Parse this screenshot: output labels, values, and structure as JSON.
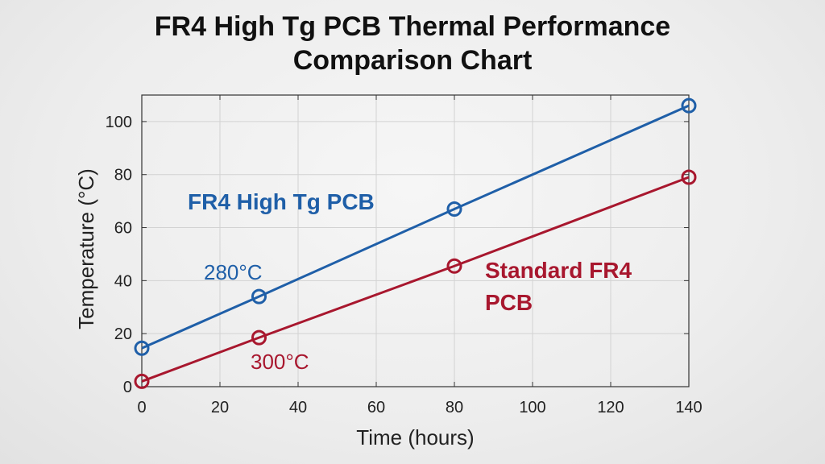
{
  "chart_data": {
    "type": "line",
    "title_lines": [
      "FR4 High Tg PCB Thermal Performance",
      "Comparison Chart"
    ],
    "xlabel": "Time (hours)",
    "ylabel": "Temperature (°C)",
    "xlim": [
      0,
      140
    ],
    "ylim": [
      0,
      110
    ],
    "xticks": [
      0,
      20,
      40,
      60,
      80,
      100,
      120,
      140
    ],
    "yticks": [
      0,
      20,
      40,
      60,
      80,
      100
    ],
    "grid": true,
    "series": [
      {
        "name": "FR4 High Tg PCB",
        "color": "#1f5fa8",
        "marker": "circle-open",
        "x": [
          0,
          30,
          80,
          140
        ],
        "y": [
          14.5,
          34,
          67,
          106
        ],
        "annotation": "280°C",
        "annotation_anchor": {
          "x": 30,
          "y": 34
        }
      },
      {
        "name": "Standard FR4\nPCB",
        "name_lines": [
          "Standard FR4",
          "PCB"
        ],
        "color": "#a8172e",
        "marker": "circle-open",
        "x": [
          0,
          30,
          80,
          140
        ],
        "y": [
          2,
          18.5,
          45.5,
          79
        ],
        "annotation": "300°C",
        "annotation_anchor": {
          "x": 30,
          "y": 18.5
        }
      }
    ]
  }
}
